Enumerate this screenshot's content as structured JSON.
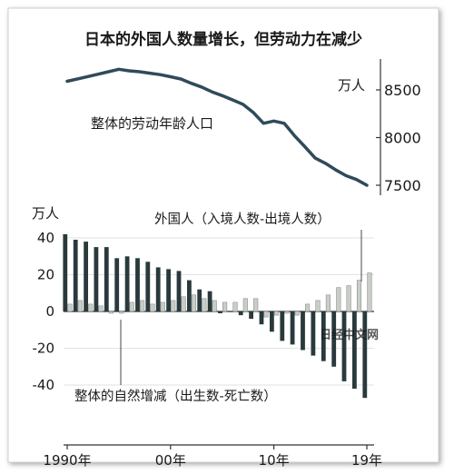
{
  "title": "日本的外国人数量增长，但劳动力在减少",
  "watermark": "日经中文网",
  "colors": {
    "line": "#2f4b5a",
    "natural_bar": "#2a3a3c",
    "foreign_bar": "#c9cdc8",
    "text": "#1a1a1a"
  },
  "chart_data": [
    {
      "type": "line",
      "title": "日本的外国人数量增长，但劳动力在减少",
      "series": [
        {
          "name": "整体的劳动年龄人口",
          "x": [
            1990,
            1991,
            1992,
            1993,
            1994,
            1995,
            1996,
            1997,
            1998,
            1999,
            2000,
            2001,
            2002,
            2003,
            2004,
            2005,
            2006,
            2007,
            2008,
            2009,
            2010,
            2011,
            2012,
            2013,
            2014,
            2015,
            2016,
            2017,
            2018,
            2019
          ],
          "y": [
            8590,
            8615,
            8640,
            8665,
            8690,
            8716,
            8700,
            8690,
            8675,
            8660,
            8638,
            8614,
            8570,
            8530,
            8480,
            8440,
            8395,
            8350,
            8265,
            8150,
            8173,
            8150,
            8020,
            7905,
            7785,
            7730,
            7660,
            7600,
            7560,
            7500
          ]
        }
      ],
      "y_unit": "万人",
      "y_ticks": [
        8500,
        8000,
        7500
      ],
      "ylim": [
        7450,
        8800
      ]
    },
    {
      "type": "bar",
      "y_unit": "万人",
      "y_ticks": [
        40,
        20,
        0,
        -20,
        -40
      ],
      "ylim": [
        -50,
        45
      ],
      "x_ticks": [
        {
          "year": 1990,
          "label": "1990年"
        },
        {
          "year": 2000,
          "label": "00年"
        },
        {
          "year": 2010,
          "label": "10年"
        },
        {
          "year": 2019,
          "label": "19年"
        }
      ],
      "categories": [
        1990,
        1991,
        1992,
        1993,
        1994,
        1995,
        1996,
        1997,
        1998,
        1999,
        2000,
        2001,
        2002,
        2003,
        2004,
        2005,
        2006,
        2007,
        2008,
        2009,
        2010,
        2011,
        2012,
        2013,
        2014,
        2015,
        2016,
        2017,
        2018,
        2019
      ],
      "series": [
        {
          "name": "整体的自然增减（出生数-死亡数）",
          "values": [
            42,
            39,
            38,
            35,
            35,
            29,
            30,
            29,
            27,
            24,
            23,
            22,
            17,
            12,
            11,
            -1,
            0,
            -2,
            -4,
            -7,
            -11,
            -16,
            -18,
            -21,
            -24,
            -27,
            -30,
            -38,
            -42,
            -47
          ]
        },
        {
          "name": "外国人（入境人数-出境人数）",
          "values": [
            4,
            6,
            4,
            3,
            -1,
            -1,
            5,
            6,
            4,
            5,
            6,
            8,
            9,
            7,
            6,
            5,
            5,
            7,
            7,
            -3,
            -2,
            -1,
            -2,
            4,
            6,
            9,
            13,
            14,
            17,
            21
          ]
        }
      ]
    }
  ]
}
